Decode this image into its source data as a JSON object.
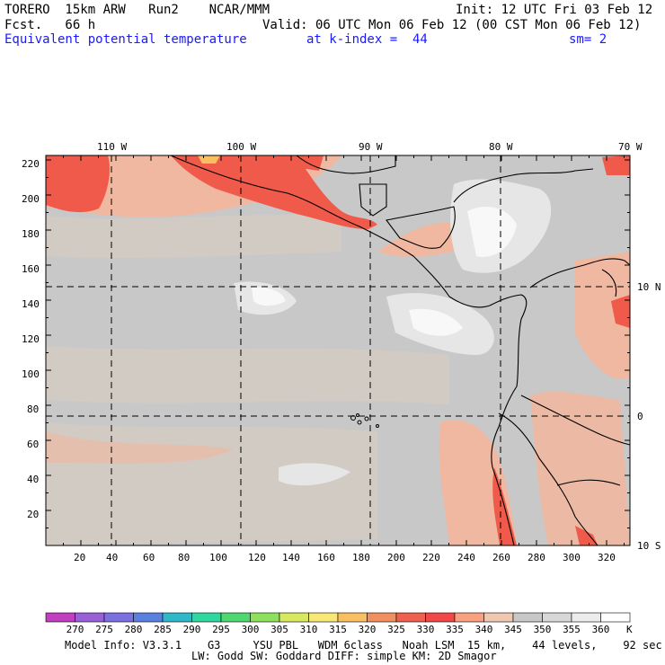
{
  "header": {
    "line1_left": "TORERO  15km ARW   Run2    NCAR/MMM",
    "line1_right": "Init: 12 UTC Fri 03 Feb 12",
    "line2_left": "Fcst.   66 h",
    "line2_right": "Valid: 06 UTC Mon 06 Feb 12 (00 CST Mon 06 Feb 12)",
    "line3_field": "Equivalent potential temperature",
    "line3_level": "at k-index =  44",
    "line3_smooth": "sm= 2"
  },
  "map": {
    "top_lon_labels": [
      "110 W",
      "100 W",
      "90 W",
      "80 W",
      "70 W"
    ],
    "right_lat_labels": [
      "10 N",
      "0",
      "10 S"
    ],
    "left_y_labels": [
      "220",
      "200",
      "180",
      "160",
      "140",
      "120",
      "100",
      "80",
      "60",
      "40",
      "20"
    ],
    "bottom_x_labels": [
      "20",
      "40",
      "60",
      "80",
      "100",
      "120",
      "140",
      "160",
      "180",
      "200",
      "220",
      "240",
      "260",
      "280",
      "300",
      "320"
    ]
  },
  "colorbar": {
    "unit": "K",
    "labels": [
      "270",
      "275",
      "280",
      "285",
      "290",
      "295",
      "300",
      "305",
      "310",
      "315",
      "320",
      "325",
      "330",
      "335",
      "340",
      "345",
      "350",
      "355",
      "360"
    ],
    "colors": [
      "#c040c0",
      "#9a60d8",
      "#7a70e0",
      "#5a80e0",
      "#30b8c8",
      "#30d8a0",
      "#50d870",
      "#90e060",
      "#d8e860",
      "#f8e878",
      "#f8c060",
      "#f09060",
      "#f06050",
      "#f04848",
      "#f8a080",
      "#f0c8b0",
      "#c8c8c8",
      "#d8d8d8",
      "#ececec",
      "#ffffff"
    ]
  },
  "footer": {
    "line1": "Model Info: V3.3.1    G3     YSU PBL   WDM 6class   Noah LSM  15 km,    44 levels,    92 sec",
    "line2": "LW: Godd SW: Goddard DIFF: simple KM: 2D Smagor"
  }
}
